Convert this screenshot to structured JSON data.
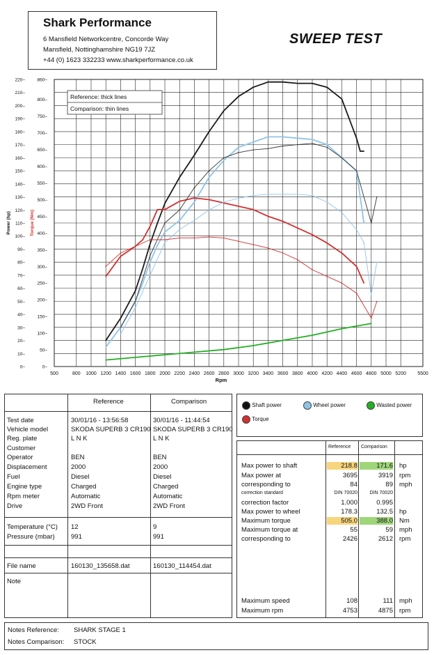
{
  "header": {
    "company": "Shark Performance",
    "address1": "6 Mansfield Networkcentre, Concorde Way",
    "address2": "Mansfield, Nottinghamshire NG19 7JZ",
    "contact": "+44 (0) 1623 332233 www.sharkperformance.co.uk",
    "title": "SWEEP TEST"
  },
  "chart_data": {
    "type": "line",
    "xlabel": "Rpm",
    "ylabel_power": "Power (hp)",
    "ylabel_torque": "Torque (Nm)",
    "xlim": [
      500,
      5500
    ],
    "x_ticks": [
      500,
      800,
      1000,
      1200,
      1400,
      1600,
      1800,
      2000,
      2200,
      2400,
      2600,
      2800,
      3000,
      3200,
      3400,
      3600,
      3800,
      4000,
      4200,
      4400,
      4600,
      4800,
      5000,
      5200,
      5500
    ],
    "power_ticks": [
      0,
      10,
      20,
      30,
      40,
      50,
      60,
      70,
      80,
      90,
      100,
      110,
      120,
      130,
      140,
      150,
      160,
      170,
      180,
      190,
      200,
      210,
      220
    ],
    "torque_ticks": [
      0,
      50,
      100,
      150,
      200,
      250,
      300,
      350,
      400,
      450,
      500,
      550,
      600,
      650,
      700,
      750,
      800,
      860
    ],
    "ylim_power": [
      0,
      220
    ],
    "ylim_torque": [
      0,
      860
    ],
    "grid": true,
    "annotation_reference": "Reference: thick lines",
    "annotation_comparison": "Comparison: thin lines",
    "series": [
      {
        "name": "Shaft power",
        "axis": "power",
        "style": "thick",
        "color": "#1a1a1a",
        "x": [
          1200,
          1400,
          1600,
          1700,
          1800,
          1900,
          2000,
          2200,
          2400,
          2600,
          2800,
          3000,
          3200,
          3400,
          3600,
          3800,
          4000,
          4200,
          4400,
          4500,
          4600,
          4650,
          4700
        ],
        "y": [
          20,
          37,
          58,
          75,
          94,
          110,
          125,
          145,
          162,
          180,
          196,
          207,
          214,
          218,
          218,
          217,
          217,
          214,
          205,
          190,
          175,
          165,
          165
        ]
      },
      {
        "name": "Wheel power",
        "axis": "power",
        "style": "thick",
        "color": "#8fc3e8",
        "x": [
          1200,
          1400,
          1600,
          1700,
          1800,
          1900,
          2000,
          2200,
          2400,
          2600,
          2800,
          3000,
          3200,
          3400,
          3600,
          3800,
          4000,
          4200,
          4400,
          4600,
          4700
        ],
        "y": [
          15,
          30,
          50,
          64,
          80,
          93,
          103,
          112,
          126,
          145,
          158,
          168,
          172,
          176,
          176,
          175,
          174,
          170,
          160,
          150,
          110
        ]
      },
      {
        "name": "Torque",
        "axis": "torque",
        "style": "thick",
        "color": "#d03030",
        "x": [
          1200,
          1400,
          1600,
          1700,
          1800,
          1900,
          2000,
          2200,
          2400,
          2600,
          2800,
          3000,
          3200,
          3400,
          3600,
          3800,
          4000,
          4200,
          4400,
          4600,
          4700
        ],
        "y": [
          270,
          330,
          360,
          380,
          420,
          470,
          470,
          495,
          505,
          500,
          490,
          480,
          470,
          450,
          435,
          415,
          395,
          370,
          340,
          300,
          250
        ]
      },
      {
        "name": "Wasted power",
        "axis": "power",
        "style": "thick",
        "color": "#22b022",
        "x": [
          1200,
          1600,
          2000,
          2400,
          2800,
          3200,
          3600,
          4000,
          4400,
          4800
        ],
        "y": [
          5,
          7,
          9,
          11,
          13,
          16,
          20,
          24,
          29,
          33
        ]
      },
      {
        "name": "Shaft power comparison",
        "axis": "power",
        "style": "thin",
        "color": "#333333",
        "x": [
          1400,
          1600,
          1800,
          2000,
          2200,
          2400,
          2600,
          2800,
          3000,
          3200,
          3400,
          3600,
          3800,
          4000,
          4200,
          4400,
          4600,
          4800,
          4875
        ],
        "y": [
          30,
          50,
          85,
          110,
          120,
          137,
          150,
          160,
          164,
          166,
          167,
          169,
          170,
          171,
          168,
          160,
          150,
          110,
          130
        ]
      },
      {
        "name": "Wheel power comparison",
        "axis": "power",
        "style": "thin",
        "color": "#8fc3e8",
        "x": [
          1400,
          1600,
          1800,
          2000,
          2200,
          2400,
          2600,
          2800,
          3000,
          3200,
          3400,
          3600,
          3800,
          4000,
          4200,
          4400,
          4600,
          4700,
          4800,
          4875
        ],
        "y": [
          25,
          45,
          70,
          95,
          105,
          112,
          120,
          126,
          129,
          131,
          132,
          132,
          132,
          131,
          126,
          118,
          105,
          95,
          55,
          80
        ]
      },
      {
        "name": "Torque comparison",
        "axis": "torque",
        "style": "thin",
        "color": "#d03030",
        "x": [
          1200,
          1400,
          1600,
          1800,
          2000,
          2200,
          2400,
          2600,
          2800,
          3000,
          3200,
          3400,
          3600,
          3800,
          4000,
          4200,
          4400,
          4600,
          4800,
          4875
        ],
        "y": [
          300,
          340,
          360,
          380,
          380,
          385,
          385,
          388,
          385,
          375,
          365,
          355,
          340,
          320,
          290,
          270,
          250,
          220,
          145,
          195
        ]
      }
    ]
  },
  "legend": {
    "shaft": "Shaft power",
    "wheel": "Wheel power",
    "wasted": "Wasted power",
    "torque": "Torque"
  },
  "info_table": {
    "col_reference": "Reference",
    "col_comparison": "Comparison",
    "rows": [
      {
        "label": "Test date",
        "ref": "30/01/16 - 13:56:58",
        "cmp": "30/01/16 - 11:44:54"
      },
      {
        "label": "Vehicle model",
        "ref": "SKODA SUPERB 3 CR190",
        "cmp": "SKODA SUPERB 3 CR190"
      },
      {
        "label": "Reg. plate",
        "ref": "L N K",
        "cmp": "L N K"
      },
      {
        "label": "Customer",
        "ref": "",
        "cmp": ""
      },
      {
        "label": "Operator",
        "ref": "BEN",
        "cmp": "BEN"
      },
      {
        "label": "Displacement",
        "ref": "2000",
        "cmp": "2000"
      },
      {
        "label": "Fuel",
        "ref": "Diesel",
        "cmp": "Diesel"
      },
      {
        "label": "Engine type",
        "ref": "Charged",
        "cmp": "Charged"
      },
      {
        "label": "Rpm meter",
        "ref": "Automatic",
        "cmp": "Automatic"
      },
      {
        "label": "Drive",
        "ref": "2WD Front",
        "cmp": "2WD Front"
      }
    ],
    "temperature_label": "Temperature (°C)",
    "temperature_ref": "12",
    "temperature_cmp": "9",
    "pressure_label": "Pressure (mbar)",
    "pressure_ref": "991",
    "pressure_cmp": "991",
    "file_label": "File name",
    "file_ref": "160130_135658.dat",
    "file_cmp": "160130_114454.dat",
    "note_label": "Note"
  },
  "results": {
    "col_reference": "Reference",
    "col_comparison": "Comparison",
    "max_power_shaft_label": "Max power to shaft",
    "max_power_shaft_ref": "218.8",
    "max_power_shaft_cmp": "171.6",
    "max_power_shaft_unit": "hp",
    "max_power_at_label": "Max power at",
    "max_power_at_ref": "3695",
    "max_power_at_cmp": "3919",
    "max_power_at_unit": "rpm",
    "corr1_label": "corresponding to",
    "corr1_ref": "84",
    "corr1_cmp": "89",
    "corr1_unit": "mph",
    "corr_std_label": "correction standard",
    "corr_std_ref": "DIN 70020",
    "corr_std_cmp": "DIN 70020",
    "corr_factor_label": "correction factor",
    "corr_factor_ref": "1.000",
    "corr_factor_cmp": "0.995",
    "max_wheel_label": "Max power to wheel",
    "max_wheel_ref": "178.3",
    "max_wheel_cmp": "132.5",
    "max_wheel_unit": "hp",
    "max_torque_label": "Maximum torque",
    "max_torque_ref": "505.0",
    "max_torque_cmp": "388.0",
    "max_torque_unit": "Nm",
    "max_torque_at_label": "Maximum torque at",
    "max_torque_at_ref": "55",
    "max_torque_at_cmp": "59",
    "max_torque_at_unit": "mph",
    "corr2_label": "corresponding to",
    "corr2_ref": "2426",
    "corr2_cmp": "2612",
    "corr2_unit": "rpm",
    "max_speed_label": "Maximum speed",
    "max_speed_ref": "108",
    "max_speed_cmp": "111",
    "max_speed_unit": "mph",
    "max_rpm_label": "Maximum rpm",
    "max_rpm_ref": "4753",
    "max_rpm_cmp": "4875",
    "max_rpm_unit": "rpm"
  },
  "notes": {
    "ref_label": "Notes Reference:",
    "ref_value": "SHARK STAGE 1",
    "cmp_label": "Notes Comparison:",
    "cmp_value": "STOCK"
  },
  "colors": {
    "shaft": "#1a1a1a",
    "wheel": "#8fc3e8",
    "torque": "#d03030",
    "wasted": "#22b022",
    "highlight_ref": "#f7d57c",
    "highlight_cmp": "#9fd67a"
  }
}
